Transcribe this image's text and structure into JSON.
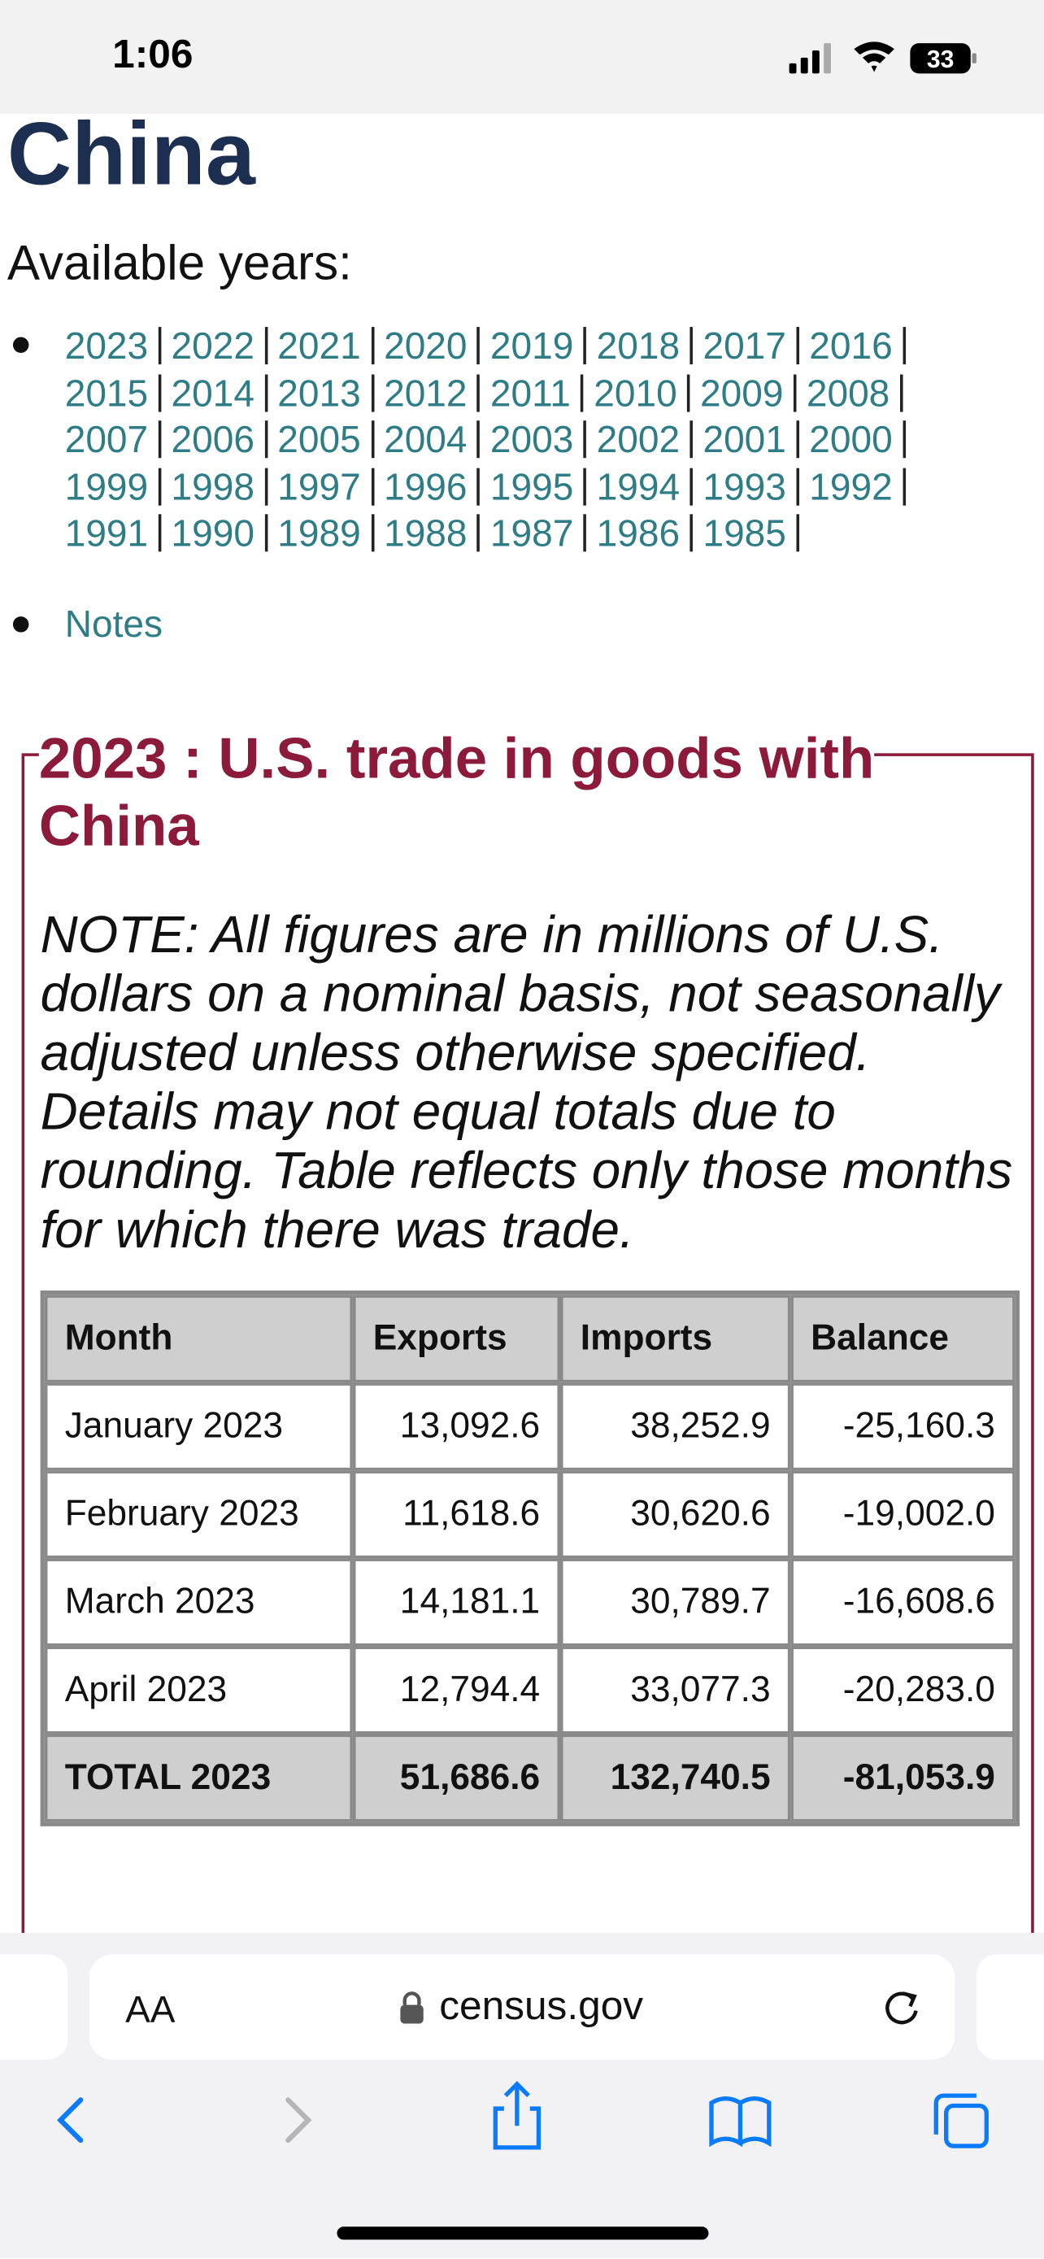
{
  "status_bar": {
    "time": "1:06",
    "battery": "33"
  },
  "page": {
    "title": "China",
    "available_years_label": "Available years:",
    "years": [
      "2023",
      "2022",
      "2021",
      "2020",
      "2019",
      "2018",
      "2017",
      "2016",
      "2015",
      "2014",
      "2013",
      "2012",
      "2011",
      "2010",
      "2009",
      "2008",
      "2007",
      "2006",
      "2005",
      "2004",
      "2003",
      "2002",
      "2001",
      "2000",
      "1999",
      "1998",
      "1997",
      "1996",
      "1995",
      "1994",
      "1993",
      "1992",
      "1991",
      "1990",
      "1989",
      "1988",
      "1987",
      "1986",
      "1985"
    ],
    "notes_link": "Notes"
  },
  "section": {
    "heading": "2023 : U.S. trade in goods with China",
    "note": "NOTE: All figures are in millions of U.S. dollars on a nominal basis, not seasonally adjusted unless otherwise specified. Details may not equal totals due to rounding. Table reflects only those months for which there was trade.",
    "table": {
      "header": [
        "Month",
        "Exports",
        "Imports",
        "Balance"
      ],
      "rows": [
        [
          "January 2023",
          "13,092.6",
          "38,252.9",
          "-25,160.3"
        ],
        [
          "February 2023",
          "11,618.6",
          "30,620.6",
          "-19,002.0"
        ],
        [
          "March 2023",
          "14,181.1",
          "30,789.7",
          "-16,608.6"
        ],
        [
          "April 2023",
          "12,794.4",
          "33,077.3",
          "-20,283.0"
        ]
      ],
      "total": [
        "TOTAL 2023",
        "51,686.6",
        "132,740.5",
        "-81,053.9"
      ]
    }
  },
  "browser": {
    "text_size_button": "AA",
    "url": "census.gov"
  }
}
